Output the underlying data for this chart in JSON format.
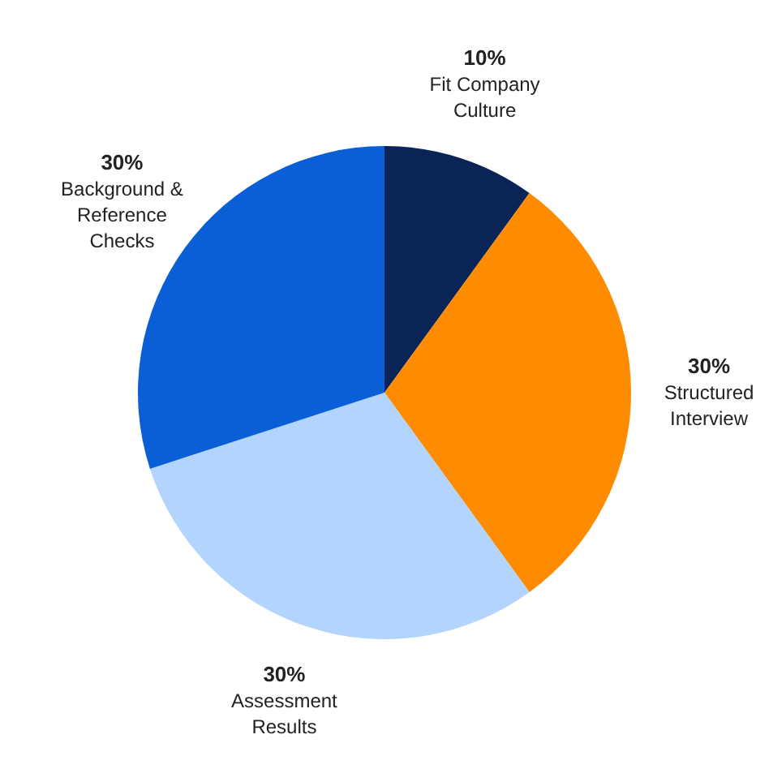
{
  "chart_data": {
    "type": "pie",
    "categories": [
      "Fit Company Culture",
      "Structured Interview",
      "Assessment Results",
      "Background & Reference Checks"
    ],
    "values": [
      10,
      30,
      30,
      30
    ],
    "colors": [
      "#0b2457",
      "#ff8c00",
      "#b3d4fc",
      "#0a5fd6"
    ],
    "value_labels": [
      "10%",
      "30%",
      "30%",
      "30%"
    ],
    "legend": false
  }
}
